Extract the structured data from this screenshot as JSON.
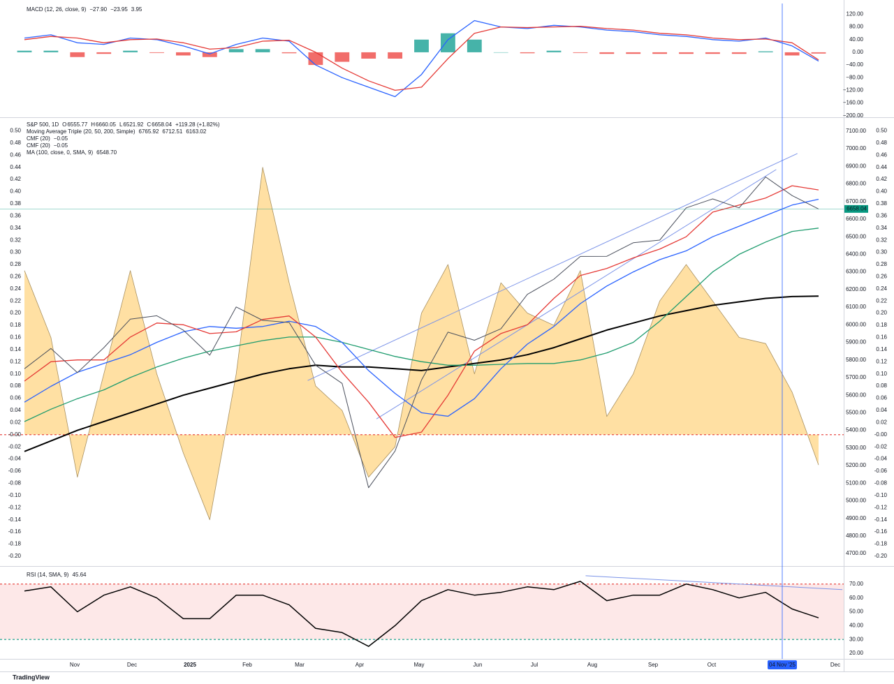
{
  "chart_data": [
    {
      "type": "macd",
      "legend": [
        [
          {
            "text": "MACD (12, 26, close, 9)",
            "color": "#131722"
          },
          {
            "text": "−27.90",
            "color": "#f4a6a6"
          },
          {
            "text": "−23.95",
            "color": "#2962ff"
          },
          {
            "text": "3.95",
            "color": "#e53935"
          }
        ]
      ],
      "ylim": [
        -205,
        154
      ],
      "yticks": [
        {
          "value": 120,
          "label": "120.00"
        },
        {
          "value": 80,
          "label": "80.00"
        },
        {
          "value": 40,
          "label": "40.00"
        },
        {
          "value": 0,
          "label": "0.00"
        },
        {
          "value": -40,
          "label": "−40.00"
        },
        {
          "value": -80,
          "label": "−80.00"
        },
        {
          "value": -120,
          "label": "−120.00"
        },
        {
          "value": -160,
          "label": "−160.00"
        },
        {
          "value": -200,
          "label": "−200.00"
        }
      ],
      "histogram": {
        "pos_color": "#26a69a",
        "neg_color": "#ef5350",
        "values": [
          5,
          5,
          -15,
          -5,
          5,
          -2,
          -10,
          -15,
          10,
          10,
          -3,
          -40,
          -30,
          -20,
          -20,
          40,
          60,
          40,
          0,
          -3,
          5,
          -2,
          -5,
          -5,
          -5,
          -5,
          -5,
          -5,
          3,
          -10,
          -4
        ]
      },
      "series": [
        {
          "name": "MACD",
          "color": "#2962ff",
          "values": [
            45,
            55,
            30,
            25,
            45,
            40,
            20,
            -5,
            25,
            45,
            35,
            -40,
            -80,
            -110,
            -140,
            -70,
            40,
            100,
            80,
            75,
            85,
            80,
            70,
            65,
            55,
            50,
            40,
            35,
            45,
            20,
            -28
          ]
        },
        {
          "name": "Signal",
          "color": "#e53935",
          "values": [
            40,
            50,
            45,
            30,
            40,
            42,
            30,
            10,
            15,
            35,
            38,
            0,
            -50,
            -90,
            -120,
            -110,
            -20,
            60,
            80,
            78,
            80,
            82,
            75,
            70,
            60,
            55,
            45,
            40,
            42,
            30,
            -24
          ]
        }
      ]
    },
    {
      "type": "price",
      "legend": [
        [
          {
            "text": "S&P 500, 1D",
            "color": "#131722"
          },
          {
            "text": "O",
            "color": "#131722"
          },
          {
            "text": "6555.77",
            "color": "#089981"
          },
          {
            "text": "H",
            "color": "#131722"
          },
          {
            "text": "6660.05",
            "color": "#089981"
          },
          {
            "text": "L",
            "color": "#131722"
          },
          {
            "text": "6521.92",
            "color": "#089981"
          },
          {
            "text": "C",
            "color": "#131722"
          },
          {
            "text": "6658.04",
            "color": "#089981"
          },
          {
            "text": "+119.28 (+1.82%)",
            "color": "#089981"
          }
        ],
        [
          {
            "text": "Moving Average Triple (20, 50, 200, Simple)",
            "color": "#131722"
          },
          {
            "text": "6765.92",
            "color": "#e53935"
          },
          {
            "text": "6712.51",
            "color": "#2962ff"
          },
          {
            "text": "6163.02",
            "color": "#131722"
          }
        ],
        [
          {
            "text": "CMF (20)",
            "color": "#131722"
          },
          {
            "text": "−0.05",
            "color": "#f5a623"
          }
        ],
        [
          {
            "text": "CMF (20)",
            "color": "#131722"
          },
          {
            "text": "−0.05",
            "color": "#131722"
          }
        ],
        [
          {
            "text": "MA (100, close, 0, SMA, 9)",
            "color": "#131722"
          },
          {
            "text": "6548.70",
            "color": "#1e9c6e"
          }
        ]
      ],
      "ylim": [
        -0.215,
        0.52
      ],
      "yticks": [
        {
          "value": 0.5,
          "label": "0.50"
        },
        {
          "value": 0.48,
          "label": "0.48"
        },
        {
          "value": 0.46,
          "label": "0.46"
        },
        {
          "value": 0.44,
          "label": "0.44"
        },
        {
          "value": 0.42,
          "label": "0.42"
        },
        {
          "value": 0.4,
          "label": "0.40"
        },
        {
          "value": 0.38,
          "label": "0.38"
        },
        {
          "value": 0.36,
          "label": "0.36"
        },
        {
          "value": 0.34,
          "label": "0.34"
        },
        {
          "value": 0.32,
          "label": "0.32"
        },
        {
          "value": 0.3,
          "label": "0.30"
        },
        {
          "value": 0.28,
          "label": "0.28"
        },
        {
          "value": 0.26,
          "label": "0.26"
        },
        {
          "value": 0.24,
          "label": "0.24"
        },
        {
          "value": 0.22,
          "label": "0.22"
        },
        {
          "value": 0.2,
          "label": "0.20"
        },
        {
          "value": 0.18,
          "label": "0.18"
        },
        {
          "value": 0.16,
          "label": "0.16"
        },
        {
          "value": 0.14,
          "label": "0.14"
        },
        {
          "value": 0.12,
          "label": "0.12"
        },
        {
          "value": 0.1,
          "label": "0.10"
        },
        {
          "value": 0.08,
          "label": "0.08"
        },
        {
          "value": 0.06,
          "label": "0.06"
        },
        {
          "value": 0.04,
          "label": "0.04"
        },
        {
          "value": 0.02,
          "label": "0.02"
        },
        {
          "value": 0,
          "label": "-0.00"
        },
        {
          "value": -0.02,
          "label": "-0.02"
        },
        {
          "value": -0.04,
          "label": "-0.04"
        },
        {
          "value": -0.06,
          "label": "-0.06"
        },
        {
          "value": -0.08,
          "label": "-0.08"
        },
        {
          "value": -0.1,
          "label": "-0.10"
        },
        {
          "value": -0.12,
          "label": "-0.12"
        },
        {
          "value": -0.14,
          "label": "-0.14"
        },
        {
          "value": -0.16,
          "label": "-0.16"
        },
        {
          "value": -0.18,
          "label": "-0.18"
        },
        {
          "value": -0.2,
          "label": "-0.20"
        }
      ],
      "y2lim": [
        4633,
        7171
      ],
      "y2ticks": [
        {
          "value": 7100,
          "label": "7100.00"
        },
        {
          "value": 7000,
          "label": "7000.00"
        },
        {
          "value": 6900,
          "label": "6900.00"
        },
        {
          "value": 6800,
          "label": "6800.00"
        },
        {
          "value": 6700,
          "label": "6700.00"
        },
        {
          "value": 6600,
          "label": "6600.00"
        },
        {
          "value": 6500,
          "label": "6500.00"
        },
        {
          "value": 6400,
          "label": "6400.00"
        },
        {
          "value": 6300,
          "label": "6300.00"
        },
        {
          "value": 6200,
          "label": "6200.00"
        },
        {
          "value": 6100,
          "label": "6100.00"
        },
        {
          "value": 6000,
          "label": "6000.00"
        },
        {
          "value": 5900,
          "label": "5900.00"
        },
        {
          "value": 5800,
          "label": "5800.00"
        },
        {
          "value": 5700,
          "label": "5700.00"
        },
        {
          "value": 5600,
          "label": "5600.00"
        },
        {
          "value": 5500,
          "label": "5500.00"
        },
        {
          "value": 5400,
          "label": "5400.00"
        },
        {
          "value": 5300,
          "label": "5300.00"
        },
        {
          "value": 5200,
          "label": "5200.00"
        },
        {
          "value": 5100,
          "label": "5100.00"
        },
        {
          "value": 5000,
          "label": "5000.00"
        },
        {
          "value": 4900,
          "label": "4900.00"
        },
        {
          "value": 4800,
          "label": "4800.00"
        },
        {
          "value": 4700,
          "label": "4700.00"
        }
      ],
      "area": {
        "name": "CMF (20)",
        "color": "#ffe0a3",
        "line_color": "#a89060",
        "values": [
          0.27,
          0.16,
          -0.07,
          0.1,
          0.27,
          0.1,
          -0.03,
          -0.14,
          0.1,
          0.44,
          0.25,
          0.08,
          0.04,
          -0.07,
          -0.02,
          0.2,
          0.28,
          0.1,
          0.25,
          0.2,
          0.18,
          0.27,
          0.03,
          0.1,
          0.22,
          0.28,
          0.22,
          0.16,
          0.15,
          0.07,
          -0.05
        ]
      },
      "hlines": [
        {
          "value": 0,
          "color": "#e53935"
        }
      ],
      "series": [
        {
          "name": "MA 200",
          "color": "#000000",
          "axis": "y2",
          "width": 2,
          "values": [
            5280,
            5340,
            5400,
            5450,
            5500,
            5550,
            5600,
            5640,
            5680,
            5720,
            5750,
            5770,
            5760,
            5760,
            5750,
            5740,
            5760,
            5780,
            5800,
            5830,
            5870,
            5920,
            5970,
            6010,
            6050,
            6080,
            6110,
            6130,
            6150,
            6160,
            6163
          ]
        },
        {
          "name": "MA 100",
          "color": "#1e9c6e",
          "axis": "y2",
          "width": 1.3,
          "values": [
            5450,
            5520,
            5580,
            5630,
            5700,
            5760,
            5810,
            5850,
            5880,
            5910,
            5930,
            5930,
            5900,
            5860,
            5820,
            5790,
            5770,
            5770,
            5775,
            5780,
            5780,
            5800,
            5840,
            5900,
            6020,
            6160,
            6300,
            6400,
            6470,
            6530,
            6549
          ]
        },
        {
          "name": "MA 50",
          "color": "#2962ff",
          "axis": "y2",
          "width": 1.3,
          "values": [
            5560,
            5650,
            5730,
            5780,
            5830,
            5900,
            5960,
            5990,
            5980,
            5990,
            6020,
            5990,
            5900,
            5740,
            5610,
            5500,
            5480,
            5580,
            5750,
            5890,
            5990,
            6120,
            6220,
            6300,
            6370,
            6420,
            6500,
            6560,
            6620,
            6680,
            6713
          ]
        },
        {
          "name": "MA 20",
          "color": "#e53935",
          "axis": "y2",
          "width": 1.3,
          "values": [
            5680,
            5790,
            5800,
            5800,
            5930,
            6010,
            6000,
            5950,
            5960,
            6030,
            6050,
            5930,
            5730,
            5560,
            5360,
            5390,
            5600,
            5850,
            5950,
            6000,
            6150,
            6280,
            6320,
            6380,
            6430,
            6500,
            6640,
            6680,
            6720,
            6790,
            6766
          ]
        },
        {
          "name": "S&P 500",
          "color": "#4a4f5c",
          "axis": "y2",
          "width": 1,
          "values": [
            5750,
            5865,
            5728,
            5870,
            6032,
            6051,
            5970,
            5827,
            6101,
            6025,
            6013,
            5770,
            5667,
            5074,
            5282,
            5686,
            5958,
            5912,
            5977,
            6173,
            6259,
            6388,
            6389,
            6466,
            6481,
            6664,
            6715,
            6664,
            6840,
            6734,
            6658
          ]
        }
      ],
      "trendlines": [
        {
          "from": [
            10.7,
            5683
          ],
          "to": [
            29.2,
            6973
          ],
          "color": "#7b93e8"
        },
        {
          "from": [
            13.3,
            5465
          ],
          "to": [
            28.4,
            6882
          ],
          "color": "#7b93e8"
        }
      ],
      "last_price": 6658.04,
      "last_price_color": "#089981"
    },
    {
      "type": "rsi",
      "legend": [
        [
          {
            "text": "RSI (14, SMA, 9)",
            "color": "#131722"
          },
          {
            "text": "45.64",
            "color": "#131722"
          }
        ]
      ],
      "ylim": [
        17,
        81
      ],
      "yticks": [
        {
          "value": 70,
          "label": "70.00"
        },
        {
          "value": 60,
          "label": "60.00"
        },
        {
          "value": 50,
          "label": "50.00"
        },
        {
          "value": 40,
          "label": "40.00"
        },
        {
          "value": 30,
          "label": "30.00"
        },
        {
          "value": 20,
          "label": "20.00"
        }
      ],
      "hlines": [
        {
          "value": 70,
          "color": "#e53935"
        },
        {
          "value": 30,
          "color": "#089981"
        }
      ],
      "band_fill": "#fde8e8",
      "series": [
        {
          "name": "RSI",
          "color": "#000000",
          "width": 1.5,
          "values": [
            65,
            68,
            50,
            62,
            68,
            60,
            45,
            45,
            62,
            62,
            55,
            38,
            35,
            25,
            40,
            58,
            66,
            62,
            64,
            68,
            66,
            72,
            58,
            62,
            62,
            70,
            66,
            60,
            64,
            52,
            45.64
          ]
        }
      ],
      "trendlines": [
        {
          "from": [
            21.2,
            76
          ],
          "to": [
            30.9,
            66
          ],
          "color": "#7b93e8"
        }
      ]
    }
  ],
  "time_axis": {
    "labels": [
      "Nov",
      "Dec",
      "2025",
      "Feb",
      "Mar",
      "Apr",
      "May",
      "Jun",
      "Jul",
      "Aug",
      "Sep",
      "Oct",
      "Dec"
    ],
    "crosshair": "04 Nov '25"
  },
  "brand": "TradingView"
}
